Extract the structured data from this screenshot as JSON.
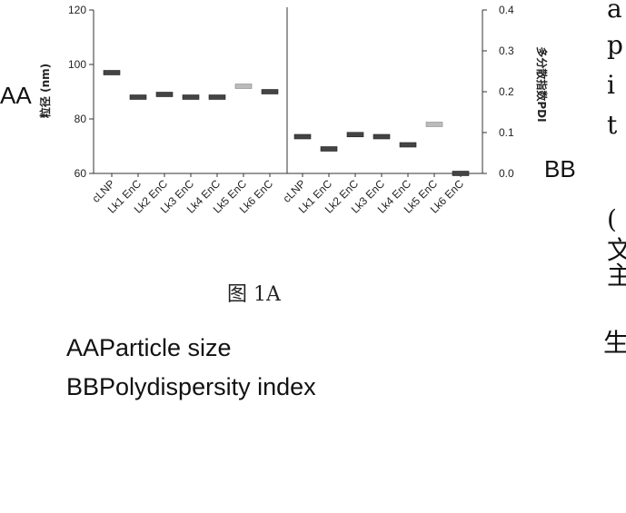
{
  "chart_data": {
    "type": "scatter",
    "categories": [
      "cLNP",
      "Lk1 EnC",
      "Lk2 EnC",
      "Lk3 EnC",
      "Lk4 EnC",
      "Lk5 EnC",
      "Lk6 EnC"
    ],
    "left_axis": {
      "ylabel": "粒径 (nm)",
      "ylim": [
        60,
        120
      ],
      "ticks": [
        "60",
        "80",
        "100",
        "120"
      ]
    },
    "right_axis": {
      "ylabel": "多分散指数PDI",
      "ylim": [
        0.0,
        0.4
      ],
      "ticks": [
        "0.0",
        "0.1",
        "0.2",
        "0.3",
        "0.4"
      ]
    },
    "series": [
      {
        "name": "AA",
        "axis": "left",
        "values": [
          97,
          88,
          89,
          88,
          88,
          92,
          90
        ]
      },
      {
        "name": "BB",
        "axis": "right",
        "values": [
          0.09,
          0.06,
          0.095,
          0.09,
          0.07,
          0.12,
          0.0
        ]
      }
    ],
    "grid": false,
    "legend": "none",
    "divider": true
  },
  "labels": {
    "aa": "AA",
    "bb": "BB"
  },
  "caption": "图 1A",
  "legend_text": {
    "aa": "AAParticle size",
    "bb": "BBPolydispersity index"
  },
  "side_text": [
    "a",
    "p",
    "i",
    "t",
    "(",
    "文",
    "主",
    "生"
  ]
}
